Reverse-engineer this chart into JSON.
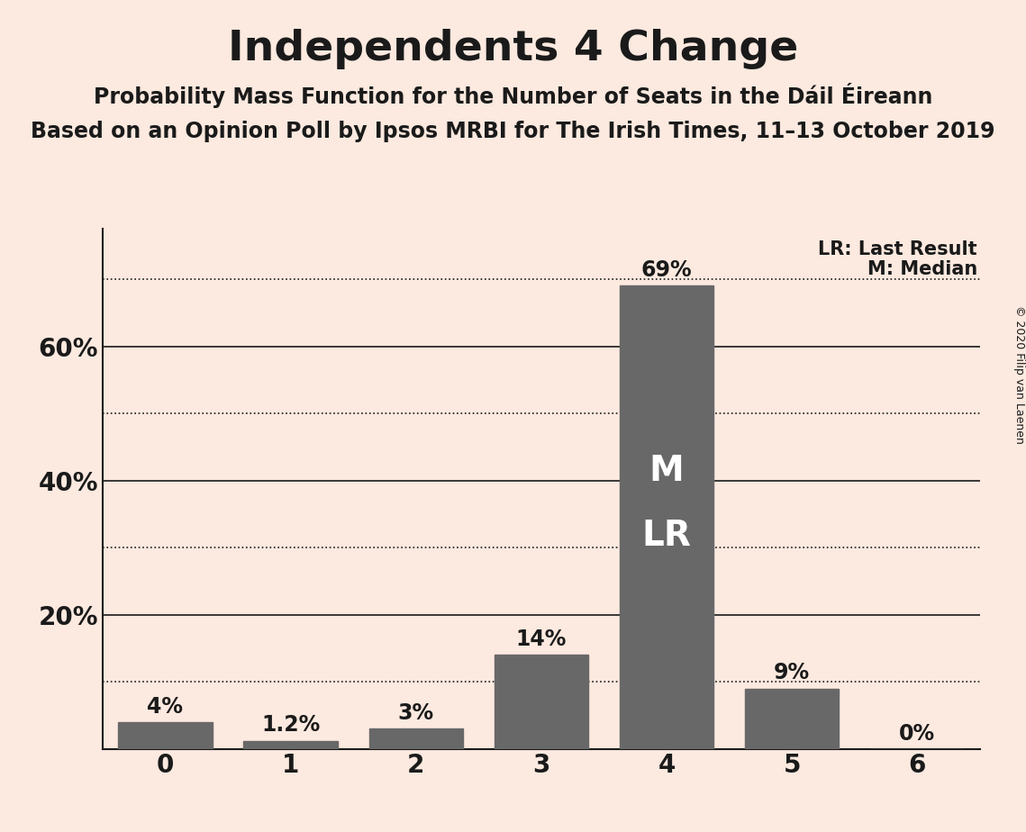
{
  "title": "Independents 4 Change",
  "subtitle1": "Probability Mass Function for the Number of Seats in the Dáil Éireann",
  "subtitle2": "Based on an Opinion Poll by Ipsos MRBI for The Irish Times, 11–13 October 2019",
  "copyright": "© 2020 Filip van Laenen",
  "categories": [
    0,
    1,
    2,
    3,
    4,
    5,
    6
  ],
  "values": [
    0.04,
    0.012,
    0.03,
    0.14,
    0.69,
    0.09,
    0.0
  ],
  "labels": [
    "4%",
    "1.2%",
    "3%",
    "14%",
    "69%",
    "9%",
    "0%"
  ],
  "bar_color": "#686868",
  "background_color": "#fce9df",
  "median_bar": 4,
  "last_result_bar": 4,
  "median_label": "M",
  "last_result_label": "LR",
  "legend_lr": "LR: Last Result",
  "legend_m": "M: Median",
  "ylim": [
    0,
    0.775
  ],
  "solid_yticks": [
    0.2,
    0.4,
    0.6
  ],
  "dotted_yticks": [
    0.1,
    0.3,
    0.5,
    0.7
  ],
  "title_fontsize": 34,
  "subtitle_fontsize": 17,
  "label_fontsize": 17,
  "tick_fontsize": 20,
  "legend_fontsize": 15,
  "bar_inner_fontsize": 28,
  "copyright_fontsize": 9
}
